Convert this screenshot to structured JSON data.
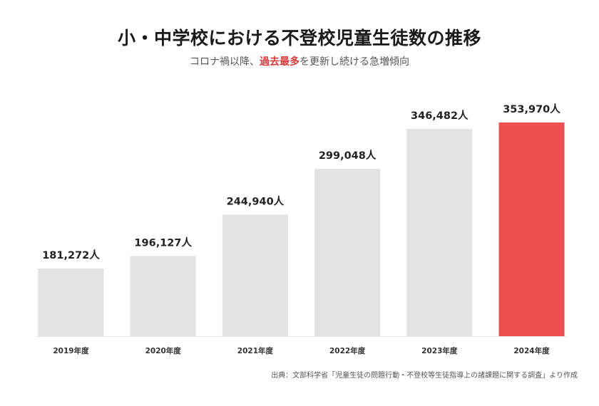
{
  "title": "小・中学校における不登校児童生徒数の推移",
  "subtitle": {
    "before": "コロナ禍以降、",
    "highlight": "過去最多",
    "after": "を更新し続ける急増傾向"
  },
  "source": "出典：文部科学省「児童生徒の問題行動・不登校等生徒指導上の諸課題に関する調査」より作成",
  "colors": {
    "bar": "#e3e3e3",
    "highlight_bar": "#ee4f4f",
    "baseline": "#e6e6e6",
    "highlight_text": "#d93a3a"
  },
  "chart_data": {
    "type": "bar",
    "title": "小・中学校における不登校児童生徒数の推移",
    "categories": [
      "2019年度",
      "2020年度",
      "2021年度",
      "2022年度",
      "2023年度",
      "2024年度"
    ],
    "values": [
      181272,
      196127,
      244940,
      299048,
      346482,
      353970
    ],
    "value_labels": [
      "181,272人",
      "196,127人",
      "244,940人",
      "299,048人",
      "346,482人",
      "353,970人"
    ],
    "highlight_index": 5,
    "ylim": [
      0,
      380000
    ],
    "grid": false,
    "legend": "none"
  }
}
